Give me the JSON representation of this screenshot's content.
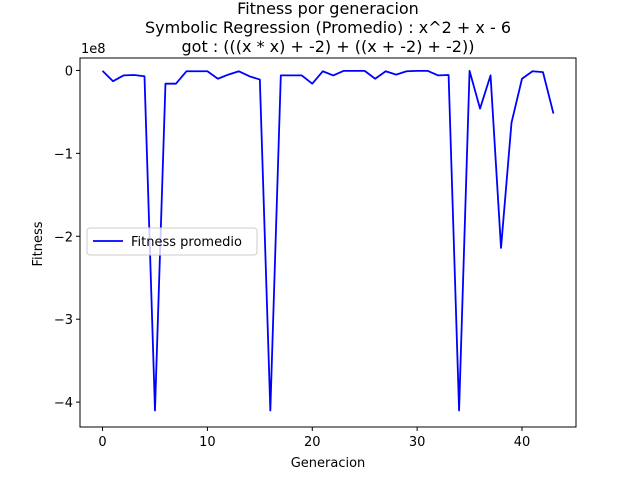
{
  "chart_data": {
    "type": "line",
    "title_lines": [
      "Fitness por generacion",
      "Symbolic Regression (Promedio) : x^2 + x - 6",
      "got : (((x * x) + -2) + ((x + -2) + -2))"
    ],
    "xlabel": "Generacion",
    "ylabel": "Fitness",
    "y_offset_label": "1e8",
    "xlim": [
      -2.15,
      45.15
    ],
    "ylim": [
      -4.3,
      0.15
    ],
    "x_ticks": [
      0,
      10,
      20,
      30,
      40
    ],
    "x_tick_labels": [
      "0",
      "10",
      "20",
      "30",
      "40"
    ],
    "y_ticks": [
      0,
      -1,
      -2,
      -3,
      -4
    ],
    "y_tick_labels": [
      "0",
      "−1",
      "−2",
      "−3",
      "−4"
    ],
    "grid": false,
    "legend_position": "center-left",
    "series": [
      {
        "name": "Fitness promedio",
        "color": "#0000ff",
        "x": [
          0,
          1,
          2,
          3,
          4,
          5,
          6,
          7,
          8,
          9,
          10,
          11,
          12,
          13,
          14,
          15,
          16,
          17,
          18,
          19,
          20,
          21,
          22,
          23,
          24,
          25,
          26,
          27,
          28,
          29,
          30,
          31,
          32,
          33,
          34,
          35,
          36,
          37,
          38,
          39,
          40,
          41,
          42,
          43
        ],
        "values": [
          -0.005,
          -0.13,
          -0.06,
          -0.055,
          -0.07,
          -4.1,
          -0.16,
          -0.16,
          -0.01,
          -0.01,
          -0.01,
          -0.1,
          -0.05,
          -0.01,
          -0.07,
          -0.11,
          -4.1,
          -0.06,
          -0.06,
          -0.06,
          -0.16,
          -0.01,
          -0.06,
          -0.005,
          -0.005,
          -0.005,
          -0.1,
          -0.01,
          -0.05,
          -0.01,
          -0.005,
          -0.005,
          -0.06,
          -0.055,
          -4.1,
          -0.005,
          -0.46,
          -0.06,
          -2.14,
          -0.63,
          -0.1,
          -0.01,
          -0.02,
          -0.52
        ]
      }
    ]
  }
}
